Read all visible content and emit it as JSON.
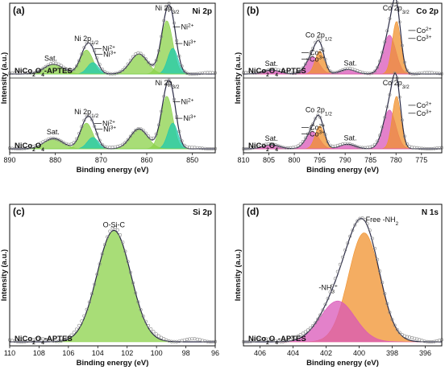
{
  "panels": [
    {
      "id": "a",
      "tag": "(a)",
      "element": "Ni 2p",
      "xlabel": "Binding energy (eV)",
      "ylabel": "Intensity (a.u.)",
      "xlim": [
        890,
        845
      ],
      "xticks": [
        890,
        880,
        870,
        860,
        850
      ],
      "stacks": [
        {
          "sample": "NiCo2O4-APTES",
          "labels": [
            {
              "text": "Ni 2p3/2",
              "x": 855.5
            },
            {
              "text": "Ni 2p1/2",
              "x": 873.2
            },
            {
              "text": "Sat.",
              "x": 881.0
            },
            {
              "text": "Ni2+",
              "x": 852.5
            },
            {
              "text": "Ni3+",
              "x": 852.0
            },
            {
              "text": "Ni2+",
              "x": 869.7
            },
            {
              "text": "Ni3+",
              "x": 869.5
            }
          ],
          "peaks": [
            {
              "name": "Ni2+ 2p3/2",
              "center": 855.6,
              "height": 0.93,
              "width": 1.3,
              "color": "#8bd24a"
            },
            {
              "name": "Ni3+ 2p3/2",
              "center": 854.3,
              "height": 0.45,
              "width": 1.1,
              "color": "#1fc9ac"
            },
            {
              "name": "Ni2+ 2p1/2",
              "center": 873.2,
              "height": 0.42,
              "width": 1.4,
              "color": "#8bd24a"
            },
            {
              "name": "Ni3+ 2p1/2",
              "center": 871.8,
              "height": 0.2,
              "width": 1.2,
              "color": "#1fc9ac"
            },
            {
              "name": "Sat.",
              "center": 861.7,
              "height": 0.35,
              "width": 1.9,
              "color": "#8bd24a"
            },
            {
              "name": "Sat.",
              "center": 880.4,
              "height": 0.17,
              "width": 2.1,
              "color": "#8bd24a"
            }
          ]
        },
        {
          "sample": "NiCo2O4",
          "labels": [
            {
              "text": "Ni 2p3/2",
              "x": 855.5
            },
            {
              "text": "Ni 2p1/2",
              "x": 873.2
            },
            {
              "text": "Sat.",
              "x": 880.5
            },
            {
              "text": "Ni2+",
              "x": 852.5
            },
            {
              "text": "Ni3+",
              "x": 852.0
            },
            {
              "text": "Ni2+",
              "x": 869.7
            },
            {
              "text": "Ni3+",
              "x": 869.5
            }
          ],
          "peaks": [
            {
              "name": "Ni2+ 2p3/2",
              "center": 855.6,
              "height": 0.92,
              "width": 1.3,
              "color": "#8bd24a"
            },
            {
              "name": "Ni3+ 2p3/2",
              "center": 854.3,
              "height": 0.45,
              "width": 1.1,
              "color": "#1fc9ac"
            },
            {
              "name": "Ni2+ 2p1/2",
              "center": 873.2,
              "height": 0.45,
              "width": 1.4,
              "color": "#8bd24a"
            },
            {
              "name": "Ni3+ 2p1/2",
              "center": 871.8,
              "height": 0.2,
              "width": 1.2,
              "color": "#1fc9ac"
            },
            {
              "name": "Sat.",
              "center": 861.7,
              "height": 0.35,
              "width": 1.9,
              "color": "#8bd24a"
            },
            {
              "name": "Sat.",
              "center": 880.4,
              "height": 0.18,
              "width": 2.1,
              "color": "#8bd24a"
            }
          ]
        }
      ]
    },
    {
      "id": "b",
      "tag": "(b)",
      "element": "Co 2p",
      "xlabel": "Binding energy (eV)",
      "ylabel": "Intensity (a.u.)",
      "xlim": [
        810,
        771
      ],
      "xticks": [
        810,
        805,
        800,
        795,
        790,
        785,
        780,
        775
      ],
      "stacks": [
        {
          "sample": "NiCo2O4-APTES",
          "labels": [
            {
              "text": "Co 2p3/2",
              "x": 780.0
            },
            {
              "text": "Co 2p1/2",
              "x": 795.2
            },
            {
              "text": "Sat.",
              "x": 804.5
            },
            {
              "text": "Sat.",
              "x": 789.0
            },
            {
              "text": "Co2+",
              "x": 797.0
            },
            {
              "text": "Co3+",
              "x": 797.0
            },
            {
              "text": "Co2+",
              "x": 776.0
            },
            {
              "text": "Co3+",
              "x": 776.0
            }
          ],
          "peaks": [
            {
              "name": "Co2+ 2p3/2",
              "center": 781.3,
              "height": 0.68,
              "width": 1.25,
              "color": "#d957b8"
            },
            {
              "name": "Co3+ 2p3/2",
              "center": 779.9,
              "height": 0.92,
              "width": 0.85,
              "color": "#f0922e"
            },
            {
              "name": "Co2+ 2p1/2",
              "center": 796.4,
              "height": 0.3,
              "width": 1.3,
              "color": "#d957b8"
            },
            {
              "name": "Co3+ 2p1/2",
              "center": 795.0,
              "height": 0.4,
              "width": 0.9,
              "color": "#f0922e"
            },
            {
              "name": "Sat.",
              "center": 789.5,
              "height": 0.08,
              "width": 1.5,
              "color": "#d957b8"
            },
            {
              "name": "Sat.",
              "center": 804.5,
              "height": 0.07,
              "width": 1.6,
              "color": "#d957b8"
            }
          ]
        },
        {
          "sample": "NiCo2O4",
          "labels": [
            {
              "text": "Co 2p3/2",
              "x": 780.0
            },
            {
              "text": "Co 2p1/2",
              "x": 795.2
            },
            {
              "text": "Sat.",
              "x": 804.5
            },
            {
              "text": "Sat.",
              "x": 789.0
            },
            {
              "text": "Co2+",
              "x": 797.0
            },
            {
              "text": "Co3+",
              "x": 797.0
            },
            {
              "text": "Co2+",
              "x": 776.0
            },
            {
              "text": "Co3+",
              "x": 776.0
            }
          ],
          "peaks": [
            {
              "name": "Co2+ 2p3/2",
              "center": 781.3,
              "height": 0.68,
              "width": 1.25,
              "color": "#d957b8"
            },
            {
              "name": "Co3+ 2p3/2",
              "center": 779.9,
              "height": 0.92,
              "width": 0.85,
              "color": "#f0922e"
            },
            {
              "name": "Co2+ 2p1/2",
              "center": 796.4,
              "height": 0.3,
              "width": 1.3,
              "color": "#d957b8"
            },
            {
              "name": "Co3+ 2p1/2",
              "center": 795.0,
              "height": 0.4,
              "width": 0.9,
              "color": "#f0922e"
            },
            {
              "name": "Sat.",
              "center": 789.5,
              "height": 0.08,
              "width": 1.5,
              "color": "#d957b8"
            },
            {
              "name": "Sat.",
              "center": 804.5,
              "height": 0.07,
              "width": 1.6,
              "color": "#d957b8"
            }
          ]
        }
      ]
    },
    {
      "id": "c",
      "tag": "(c)",
      "element": "Si 2p",
      "xlabel": "Binding energy (eV)",
      "ylabel": "Intensity (a.u.)",
      "xlim": [
        110,
        96
      ],
      "xticks": [
        110,
        108,
        106,
        104,
        102,
        100,
        98,
        96
      ],
      "stacks": [
        {
          "sample": "NiCo2O4-APTES",
          "labels": [
            {
              "text": "O-Si-C",
              "x": 102.9
            }
          ],
          "peaks": [
            {
              "name": "O-Si-C",
              "center": 102.9,
              "height": 0.9,
              "width": 1.15,
              "color": "#8bd24a"
            }
          ]
        }
      ]
    },
    {
      "id": "d",
      "tag": "(d)",
      "element": "N 1s",
      "xlabel": "Binding energy (eV)",
      "ylabel": "Intensity (a.u.)",
      "xlim": [
        407,
        395
      ],
      "xticks": [
        406,
        404,
        402,
        400,
        398,
        396
      ],
      "stacks": [
        {
          "sample": "NiCo2O4-APTES",
          "labels": [
            {
              "text": "Free -NH2",
              "x": 399.7
            },
            {
              "text": "-NH3+",
              "x": 401.3
            }
          ],
          "peaks": [
            {
              "name": "Free -NH2",
              "center": 399.7,
              "height": 0.88,
              "width": 0.95,
              "color": "#f0922e"
            },
            {
              "name": "-NH3+",
              "center": 401.3,
              "height": 0.33,
              "width": 1.05,
              "color": "#d957b8"
            }
          ]
        }
      ]
    }
  ],
  "chart_data": [
    {
      "type": "line",
      "title": "Ni 2p",
      "xlabel": "Binding energy (eV)",
      "ylabel": "Intensity (a.u.)",
      "xlim": [
        890,
        845
      ],
      "series": [
        {
          "name": "NiCo2O4-APTES",
          "x": [
            890,
            880.4,
            873.2,
            861.7,
            855.6,
            845
          ],
          "values": [
            0.03,
            0.18,
            0.45,
            0.36,
            1.0,
            0.02
          ]
        },
        {
          "name": "NiCo2O4",
          "x": [
            890,
            880.4,
            873.2,
            861.7,
            855.6,
            845
          ],
          "values": [
            0.03,
            0.19,
            0.48,
            0.36,
            0.99,
            0.02
          ]
        }
      ]
    },
    {
      "type": "line",
      "title": "Co 2p",
      "xlabel": "Binding energy (eV)",
      "ylabel": "Intensity (a.u.)",
      "xlim": [
        810,
        771
      ],
      "series": [
        {
          "name": "NiCo2O4-APTES",
          "x": [
            810,
            804.5,
            795.2,
            789.5,
            780.2,
            771
          ],
          "values": [
            0.03,
            0.08,
            0.48,
            0.1,
            1.0,
            0.02
          ]
        },
        {
          "name": "NiCo2O4",
          "x": [
            810,
            804.5,
            795.2,
            789.5,
            780.2,
            771
          ],
          "values": [
            0.03,
            0.08,
            0.48,
            0.1,
            1.0,
            0.02
          ]
        }
      ]
    },
    {
      "type": "line",
      "title": "Si 2p",
      "xlabel": "Binding energy (eV)",
      "ylabel": "Intensity (a.u.)",
      "xlim": [
        110,
        96
      ],
      "series": [
        {
          "name": "NiCo2O4-APTES",
          "x": [
            110,
            106,
            104,
            102.9,
            101,
            99,
            96
          ],
          "values": [
            0.02,
            0.06,
            0.58,
            0.9,
            0.22,
            0.03,
            0.02
          ]
        }
      ]
    },
    {
      "type": "line",
      "title": "N 1s",
      "xlabel": "Binding energy (eV)",
      "ylabel": "Intensity (a.u.)",
      "xlim": [
        407,
        395
      ],
      "series": [
        {
          "name": "NiCo2O4-APTES",
          "x": [
            407,
            403,
            401.3,
            399.9,
            398,
            395
          ],
          "values": [
            0.02,
            0.12,
            0.58,
            0.95,
            0.25,
            0.02
          ]
        }
      ]
    }
  ]
}
